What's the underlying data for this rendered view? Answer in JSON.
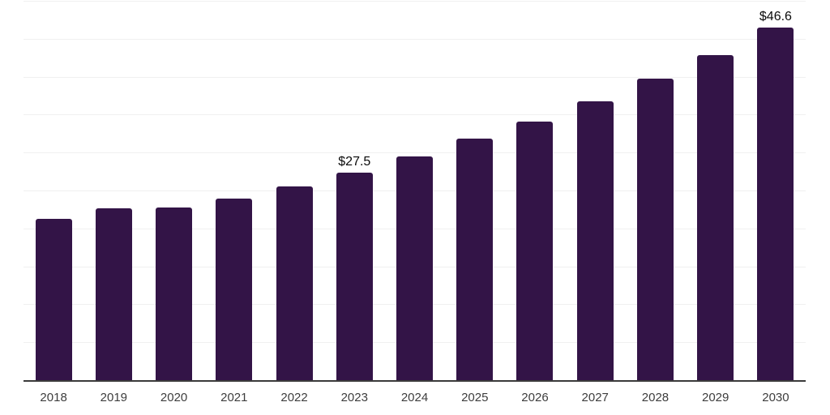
{
  "chart_data": {
    "type": "bar",
    "categories": [
      "2018",
      "2019",
      "2020",
      "2021",
      "2022",
      "2023",
      "2024",
      "2025",
      "2026",
      "2027",
      "2028",
      "2029",
      "2030"
    ],
    "values": [
      21.4,
      22.8,
      22.9,
      24.0,
      25.6,
      27.5,
      29.6,
      31.9,
      34.2,
      36.9,
      39.8,
      43.0,
      46.6
    ],
    "bar_labels": [
      "",
      "",
      "",
      "",
      "",
      "$27.5",
      "",
      "",
      "",
      "",
      "",
      "",
      "$46.6"
    ],
    "title": "",
    "xlabel": "",
    "ylabel": "",
    "ylim": [
      0,
      50
    ],
    "grid_interval": 5,
    "grid": true,
    "legend": false,
    "colors": {
      "bar": "#331447",
      "grid": "#f0f0f0",
      "axis": "#3b3b3b",
      "tick_label": "#3d3d3d",
      "value_label": "#0a0a0a",
      "background": "#ffffff"
    }
  }
}
